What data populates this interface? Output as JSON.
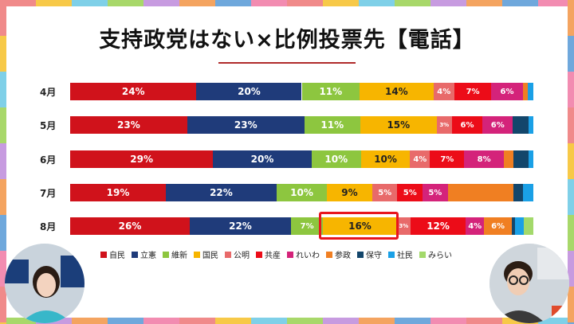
{
  "title": "支持政党はない×比例投票先【電話】",
  "colors": {
    "自民": "#d0121b",
    "立憲": "#1f3b7a",
    "維新": "#8dc63f",
    "国民": "#f7b500",
    "公明": "#e86a6a",
    "共産": "#ec0c18",
    "れいわ": "#d4237a",
    "参政": "#f07f22",
    "保守": "#13466b",
    "社民": "#1aa0e6",
    "みらい": "#a3d96b"
  },
  "chart_data": {
    "type": "bar",
    "orientation": "horizontal-stacked",
    "title": "支持政党はない×比例投票先【電話】",
    "categories": [
      "4月",
      "5月",
      "6月",
      "7月",
      "8月"
    ],
    "unit": "%",
    "series": [
      {
        "name": "自民",
        "values": [
          24,
          23,
          29,
          19,
          26
        ]
      },
      {
        "name": "立憲",
        "values": [
          20,
          23,
          20,
          22,
          22
        ]
      },
      {
        "name": "維新",
        "values": [
          11,
          11,
          10,
          10,
          7
        ]
      },
      {
        "name": "国民",
        "values": [
          14,
          15,
          10,
          9,
          16
        ]
      },
      {
        "name": "公明",
        "values": [
          4,
          3,
          4,
          5,
          3
        ]
      },
      {
        "name": "共産",
        "values": [
          7,
          6,
          7,
          5,
          12
        ]
      },
      {
        "name": "れいわ",
        "values": [
          6,
          6,
          8,
          5,
          4
        ]
      },
      {
        "name": "参政",
        "values": [
          1,
          0,
          2,
          13,
          6
        ]
      },
      {
        "name": "保守",
        "values": [
          0,
          3,
          3,
          2,
          0.7
        ]
      },
      {
        "name": "社民",
        "values": [
          1,
          1,
          1,
          2,
          2
        ]
      },
      {
        "name": "みらい",
        "values": [
          0,
          0,
          0,
          0,
          2
        ]
      }
    ],
    "data_labels": [
      [
        "24%",
        "20%",
        "11%",
        "14%",
        "4%",
        "7%",
        "6%",
        "",
        "",
        "",
        ""
      ],
      [
        "23%",
        "23%",
        "11%",
        "15%",
        "3%",
        "6%",
        "6%",
        "",
        "",
        "",
        ""
      ],
      [
        "29%",
        "20%",
        "10%",
        "10%",
        "4%",
        "7%",
        "8%",
        "",
        "",
        "",
        ""
      ],
      [
        "19%",
        "22%",
        "10%",
        "9%",
        "5%",
        "5%",
        "5%",
        "",
        "",
        "",
        ""
      ],
      [
        "26%",
        "22%",
        "7%",
        "16%",
        "3%",
        "12%",
        "4%",
        "6%",
        "",
        "",
        ""
      ]
    ],
    "highlight": {
      "category": "8月",
      "series": "国民"
    },
    "legend": [
      "自民",
      "立憲",
      "維新",
      "国民",
      "公明",
      "共産",
      "れいわ",
      "参政",
      "保守",
      "社民",
      "みらい"
    ],
    "legend_position": "bottom"
  }
}
